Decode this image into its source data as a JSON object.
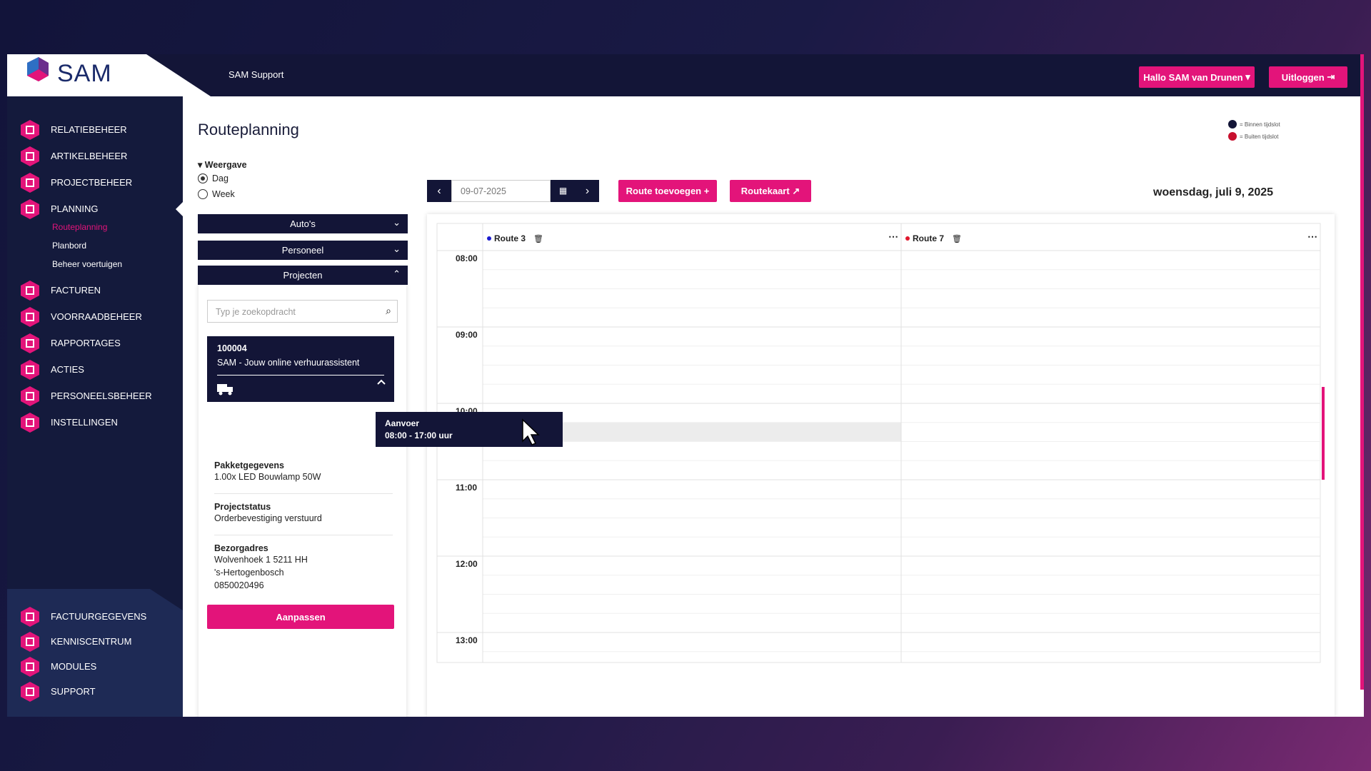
{
  "logo": "SAM",
  "header": {
    "app_name": "SAM Support",
    "user_button": "Hallo SAM van Drunen",
    "logout": "Uitloggen"
  },
  "nav": {
    "main": [
      "RELATIEBEHEER",
      "ARTIKELBEHEER",
      "PROJECTBEHEER",
      "PLANNING",
      "FACTUREN",
      "VOORRAADBEHEER",
      "RAPPORTAGES",
      "ACTIES",
      "PERSONEELSBEHEER",
      "INSTELLINGEN"
    ],
    "sub": [
      "Routeplanning",
      "Planbord",
      "Beheer voertuigen"
    ],
    "bottom": [
      "FACTUURGEGEVENS",
      "KENNISCENTRUM",
      "MODULES",
      "SUPPORT"
    ]
  },
  "page": {
    "title": "Routeplanning",
    "view_label": "Weergave",
    "view_options": [
      "Dag",
      "Week"
    ],
    "legend": [
      "= Binnen tijdslot",
      "= Buiten tijdslot"
    ],
    "filters": [
      "Auto's",
      "Personeel",
      "Projecten"
    ],
    "search_placeholder": "Typ je zoekopdracht",
    "project": {
      "number": "100004",
      "name": "SAM - Jouw online verhuurassistent"
    },
    "details": [
      {
        "label": "Pakketgegevens",
        "lines": [
          "1.00x LED Bouwlamp 50W"
        ]
      },
      {
        "label": "Projectstatus",
        "lines": [
          "Orderbevestiging verstuurd"
        ]
      },
      {
        "label": "Bezorgadres",
        "lines": [
          "Wolvenhoek 1 5211 HH",
          "'s-Hertogenbosch",
          "0850020496"
        ]
      }
    ],
    "edit_button": "Aanpassen",
    "date_input": "09-07-2025",
    "add_route": "Route toevoegen",
    "route_map": "Routekaart",
    "date_label": "woensdag, juli 9, 2025",
    "routes": [
      {
        "name": "Route 3",
        "color": "#1c1ccf"
      },
      {
        "name": "Route 7",
        "color": "#e0182d"
      }
    ],
    "times": [
      "08:00",
      "09:00",
      "10:00",
      "11:00",
      "12:00",
      "13:00"
    ],
    "tooltip": {
      "title": "Aanvoer",
      "time": "08:00 - 17:00 uur"
    }
  }
}
